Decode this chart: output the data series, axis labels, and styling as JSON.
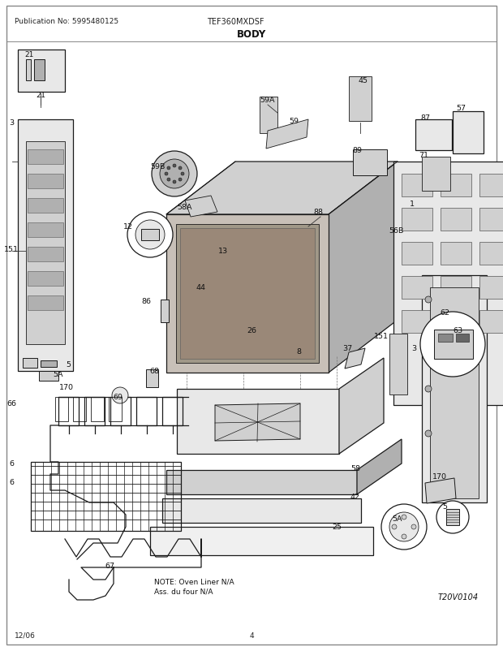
{
  "pub_no": "Publication No: 5995480125",
  "model": "TEF360MXDSF",
  "title": "BODY",
  "date": "12/06",
  "page": "4",
  "diagram_id": "T20V0104",
  "note_line1": "NOTE: Oven Liner N/A",
  "note_line2": "Ass. du four N/A",
  "bg_color": "#ffffff",
  "figsize": [
    6.2,
    8.03
  ],
  "dpi": 100
}
